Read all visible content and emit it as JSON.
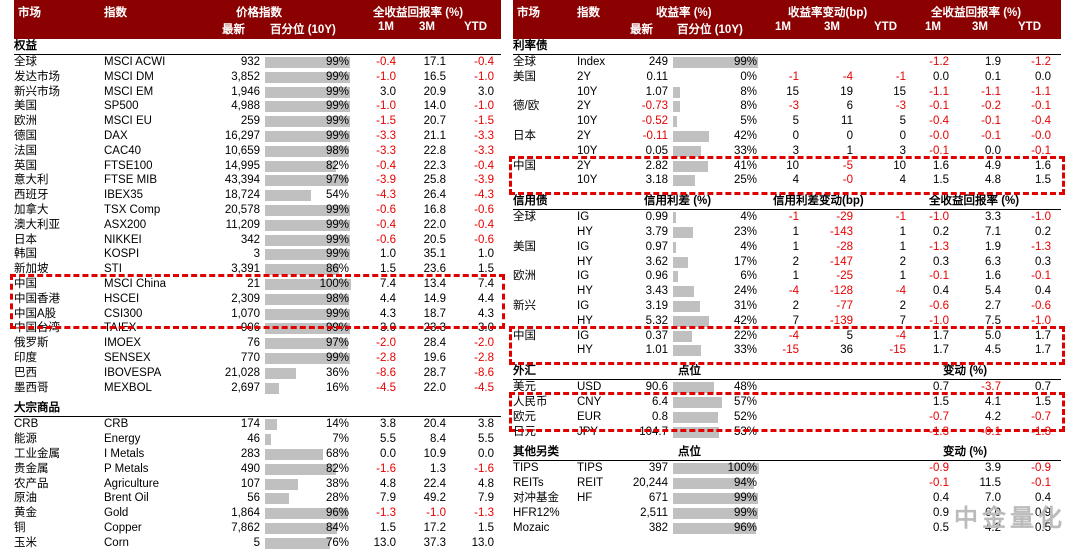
{
  "watermark": "中金量化",
  "left": {
    "header": {
      "market": "市场",
      "index": "指数",
      "price_idx": "价格指数",
      "latest": "最新",
      "percentile": "百分位 (10Y)",
      "total_return": "全收益回报率 (%)",
      "m1": "1M",
      "m3": "3M",
      "ytd": "YTD"
    },
    "equity": {
      "title": "权益",
      "rows": [
        {
          "market": "全球",
          "index": "MSCI ACWI",
          "latest": "932",
          "pct": 99,
          "pct_label": "99%",
          "m1": "-0.4",
          "m3": "17.1",
          "ytd": "-0.4"
        },
        {
          "market": "发达市场",
          "index": "MSCI DM",
          "latest": "3,852",
          "pct": 99,
          "pct_label": "99%",
          "m1": "-1.0",
          "m3": "16.5",
          "ytd": "-1.0"
        },
        {
          "market": "新兴市场",
          "index": "MSCI EM",
          "latest": "1,946",
          "pct": 99,
          "pct_label": "99%",
          "m1": "3.0",
          "m3": "20.9",
          "ytd": "3.0"
        },
        {
          "market": "美国",
          "index": "SP500",
          "latest": "4,988",
          "pct": 99,
          "pct_label": "99%",
          "m1": "-1.0",
          "m3": "14.0",
          "ytd": "-1.0"
        },
        {
          "market": "欧洲",
          "index": "MSCI EU",
          "latest": "259",
          "pct": 99,
          "pct_label": "99%",
          "m1": "-1.5",
          "m3": "20.7",
          "ytd": "-1.5"
        },
        {
          "market": "德国",
          "index": "DAX",
          "latest": "16,297",
          "pct": 99,
          "pct_label": "99%",
          "m1": "-3.3",
          "m3": "21.1",
          "ytd": "-3.3"
        },
        {
          "market": "法国",
          "index": "CAC40",
          "latest": "10,659",
          "pct": 98,
          "pct_label": "98%",
          "m1": "-3.3",
          "m3": "22.8",
          "ytd": "-3.3"
        },
        {
          "market": "英国",
          "index": "FTSE100",
          "latest": "14,995",
          "pct": 82,
          "pct_label": "82%",
          "m1": "-0.4",
          "m3": "22.3",
          "ytd": "-0.4"
        },
        {
          "market": "意大利",
          "index": "FTSE MIB",
          "latest": "43,394",
          "pct": 97,
          "pct_label": "97%",
          "m1": "-3.9",
          "m3": "25.8",
          "ytd": "-3.9"
        },
        {
          "market": "西班牙",
          "index": "IBEX35",
          "latest": "18,724",
          "pct": 54,
          "pct_label": "54%",
          "m1": "-4.3",
          "m3": "26.4",
          "ytd": "-4.3"
        },
        {
          "market": "加拿大",
          "index": "TSX Comp",
          "latest": "20,578",
          "pct": 99,
          "pct_label": "99%",
          "m1": "-0.6",
          "m3": "16.8",
          "ytd": "-0.6"
        },
        {
          "market": "澳大利亚",
          "index": "ASX200",
          "latest": "11,209",
          "pct": 99,
          "pct_label": "99%",
          "m1": "-0.4",
          "m3": "22.0",
          "ytd": "-0.4"
        },
        {
          "market": "日本",
          "index": "NIKKEI",
          "latest": "342",
          "pct": 99,
          "pct_label": "99%",
          "m1": "-0.6",
          "m3": "20.5",
          "ytd": "-0.6"
        },
        {
          "market": "韩国",
          "index": "KOSPI",
          "latest": "3",
          "pct": 99,
          "pct_label": "99%",
          "m1": "1.0",
          "m3": "35.1",
          "ytd": "1.0"
        },
        {
          "market": "新加坡",
          "index": "STI",
          "latest": "3,391",
          "pct": 86,
          "pct_label": "86%",
          "m1": "1.5",
          "m3": "23.6",
          "ytd": "1.5"
        },
        {
          "market": "中国",
          "index": "MSCI China",
          "latest": "21",
          "pct": 100,
          "pct_label": "100%",
          "m1": "7.4",
          "m3": "13.4",
          "ytd": "7.4"
        },
        {
          "market": "中国香港",
          "index": "HSCEI",
          "latest": "2,309",
          "pct": 98,
          "pct_label": "98%",
          "m1": "4.4",
          "m3": "14.9",
          "ytd": "4.4"
        },
        {
          "market": "中国A股",
          "index": "CSI300",
          "latest": "1,070",
          "pct": 99,
          "pct_label": "99%",
          "m1": "4.3",
          "m3": "18.7",
          "ytd": "4.3"
        },
        {
          "market": "中国台湾",
          "index": "TAIEX",
          "latest": "906",
          "pct": 99,
          "pct_label": "99%",
          "m1": "3.0",
          "m3": "23.3",
          "ytd": "3.0"
        },
        {
          "market": "俄罗斯",
          "index": "IMOEX",
          "latest": "76",
          "pct": 97,
          "pct_label": "97%",
          "m1": "-2.0",
          "m3": "28.4",
          "ytd": "-2.0"
        },
        {
          "market": "印度",
          "index": "SENSEX",
          "latest": "770",
          "pct": 99,
          "pct_label": "99%",
          "m1": "-2.8",
          "m3": "19.6",
          "ytd": "-2.8"
        },
        {
          "market": "巴西",
          "index": "IBOVESPA",
          "latest": "21,028",
          "pct": 36,
          "pct_label": "36%",
          "m1": "-8.6",
          "m3": "28.7",
          "ytd": "-8.6"
        },
        {
          "market": "墨西哥",
          "index": "MEXBOL",
          "latest": "2,697",
          "pct": 16,
          "pct_label": "16%",
          "m1": "-4.5",
          "m3": "22.0",
          "ytd": "-4.5"
        }
      ]
    },
    "commodity": {
      "title": "大宗商品",
      "rows": [
        {
          "market": "CRB",
          "index": "CRB",
          "latest": "174",
          "pct": 14,
          "pct_label": "14%",
          "m1": "3.8",
          "m3": "20.4",
          "ytd": "3.8"
        },
        {
          "market": "能源",
          "index": "Energy",
          "latest": "46",
          "pct": 7,
          "pct_label": "7%",
          "m1": "5.5",
          "m3": "8.4",
          "ytd": "5.5"
        },
        {
          "market": "工业金属",
          "index": "I Metals",
          "latest": "283",
          "pct": 68,
          "pct_label": "68%",
          "m1": "0.0",
          "m3": "10.9",
          "ytd": "0.0"
        },
        {
          "market": "贵金属",
          "index": "P Metals",
          "latest": "490",
          "pct": 82,
          "pct_label": "82%",
          "m1": "-1.6",
          "m3": "1.3",
          "ytd": "-1.6"
        },
        {
          "market": "农产品",
          "index": "Agriculture",
          "latest": "107",
          "pct": 38,
          "pct_label": "38%",
          "m1": "4.8",
          "m3": "22.4",
          "ytd": "4.8"
        },
        {
          "market": "原油",
          "index": "Brent Oil",
          "latest": "56",
          "pct": 28,
          "pct_label": "28%",
          "m1": "7.9",
          "m3": "49.2",
          "ytd": "7.9"
        },
        {
          "market": "黄金",
          "index": "Gold",
          "latest": "1,864",
          "pct": 96,
          "pct_label": "96%",
          "m1": "-1.3",
          "m3": "-1.0",
          "ytd": "-1.3"
        },
        {
          "market": "铜",
          "index": "Copper",
          "latest": "7,862",
          "pct": 84,
          "pct_label": "84%",
          "m1": "1.5",
          "m3": "17.2",
          "ytd": "1.5"
        },
        {
          "market": "玉米",
          "index": "Corn",
          "latest": "5",
          "pct": 76,
          "pct_label": "76%",
          "m1": "13.0",
          "m3": "37.3",
          "ytd": "13.0"
        }
      ]
    }
  },
  "right": {
    "header": {
      "market": "市场",
      "index": "指数",
      "yield": "收益率 (%)",
      "latest": "最新",
      "percentile": "百分位 (10Y)",
      "yield_chg": "收益率变动(bp)",
      "total_return": "全收益回报率 (%)",
      "m1": "1M",
      "m3": "3M",
      "ytd": "YTD"
    },
    "rates": {
      "title": "利率债",
      "rows": [
        {
          "market": "全球",
          "index": "Index",
          "latest": "249",
          "pct": 99,
          "pct_label": "99%",
          "c1": "",
          "c3": "",
          "cy": "",
          "m1": "-1.2",
          "m3": "1.9",
          "ytd": "-1.2"
        },
        {
          "market": "美国",
          "index": "2Y",
          "latest": "0.11",
          "pct": 0,
          "pct_label": "0%",
          "c1": "-1",
          "c3": "-4",
          "cy": "-1",
          "m1": "0.0",
          "m3": "0.1",
          "ytd": "0.0"
        },
        {
          "market": "",
          "index": "10Y",
          "latest": "1.07",
          "pct": 8,
          "pct_label": "8%",
          "c1": "15",
          "c3": "19",
          "cy": "15",
          "m1": "-1.1",
          "m3": "-1.1",
          "ytd": "-1.1"
        },
        {
          "market": "德/欧",
          "index": "2Y",
          "latest": "-0.73",
          "pct": 8,
          "pct_label": "8%",
          "c1": "-3",
          "c3": "6",
          "cy": "-3",
          "m1": "-0.1",
          "m3": "-0.2",
          "ytd": "-0.1"
        },
        {
          "market": "",
          "index": "10Y",
          "latest": "-0.52",
          "pct": 5,
          "pct_label": "5%",
          "c1": "5",
          "c3": "11",
          "cy": "5",
          "m1": "-0.4",
          "m3": "-0.1",
          "ytd": "-0.4"
        },
        {
          "market": "日本",
          "index": "2Y",
          "latest": "-0.11",
          "pct": 42,
          "pct_label": "42%",
          "c1": "0",
          "c3": "0",
          "cy": "0",
          "m1": "-0.0",
          "m3": "-0.1",
          "ytd": "-0.0"
        },
        {
          "market": "",
          "index": "10Y",
          "latest": "0.05",
          "pct": 33,
          "pct_label": "33%",
          "c1": "3",
          "c3": "1",
          "cy": "3",
          "m1": "-0.1",
          "m3": "0.0",
          "ytd": "-0.1"
        },
        {
          "market": "中国",
          "index": "2Y",
          "latest": "2.82",
          "pct": 41,
          "pct_label": "41%",
          "c1": "10",
          "c3": "-5",
          "cy": "10",
          "m1": "1.6",
          "m3": "4.9",
          "ytd": "1.6"
        },
        {
          "market": "",
          "index": "10Y",
          "latest": "3.18",
          "pct": 25,
          "pct_label": "25%",
          "c1": "4",
          "c3": "-0",
          "cy": "4",
          "m1": "1.5",
          "m3": "4.8",
          "ytd": "1.5"
        }
      ]
    },
    "credit": {
      "title": "信用债",
      "col_spread": "信用利差 (%)",
      "col_chg": "信用利差变动(bp)",
      "col_ret": "全收益回报率 (%)",
      "rows": [
        {
          "market": "全球",
          "index": "IG",
          "latest": "0.99",
          "pct": 4,
          "pct_label": "4%",
          "c1": "-1",
          "c3": "-29",
          "cy": "-1",
          "m1": "-1.0",
          "m3": "3.3",
          "ytd": "-1.0"
        },
        {
          "market": "",
          "index": "HY",
          "latest": "3.79",
          "pct": 23,
          "pct_label": "23%",
          "c1": "1",
          "c3": "-143",
          "cy": "1",
          "m1": "0.2",
          "m3": "7.1",
          "ytd": "0.2"
        },
        {
          "market": "美国",
          "index": "IG",
          "latest": "0.97",
          "pct": 4,
          "pct_label": "4%",
          "c1": "1",
          "c3": "-28",
          "cy": "1",
          "m1": "-1.3",
          "m3": "1.9",
          "ytd": "-1.3"
        },
        {
          "market": "",
          "index": "HY",
          "latest": "3.62",
          "pct": 17,
          "pct_label": "17%",
          "c1": "2",
          "c3": "-147",
          "cy": "2",
          "m1": "0.3",
          "m3": "6.3",
          "ytd": "0.3"
        },
        {
          "market": "欧洲",
          "index": "IG",
          "latest": "0.96",
          "pct": 6,
          "pct_label": "6%",
          "c1": "1",
          "c3": "-25",
          "cy": "1",
          "m1": "-0.1",
          "m3": "1.6",
          "ytd": "-0.1"
        },
        {
          "market": "",
          "index": "HY",
          "latest": "3.43",
          "pct": 24,
          "pct_label": "24%",
          "c1": "-4",
          "c3": "-128",
          "cy": "-4",
          "m1": "0.4",
          "m3": "5.4",
          "ytd": "0.4"
        },
        {
          "market": "新兴",
          "index": "IG",
          "latest": "3.19",
          "pct": 31,
          "pct_label": "31%",
          "c1": "2",
          "c3": "-77",
          "cy": "2",
          "m1": "-0.6",
          "m3": "2.7",
          "ytd": "-0.6"
        },
        {
          "market": "",
          "index": "HY",
          "latest": "5.32",
          "pct": 42,
          "pct_label": "42%",
          "c1": "7",
          "c3": "-139",
          "cy": "7",
          "m1": "-1.0",
          "m3": "7.5",
          "ytd": "-1.0"
        },
        {
          "market": "中国",
          "index": "IG",
          "latest": "0.37",
          "pct": 22,
          "pct_label": "22%",
          "c1": "-4",
          "c3": "5",
          "cy": "-4",
          "m1": "1.7",
          "m3": "5.0",
          "ytd": "1.7"
        },
        {
          "market": "",
          "index": "HY",
          "latest": "1.01",
          "pct": 33,
          "pct_label": "33%",
          "c1": "-15",
          "c3": "36",
          "cy": "-15",
          "m1": "1.7",
          "m3": "4.5",
          "ytd": "1.7"
        }
      ]
    },
    "fx": {
      "title": "外汇",
      "col_point": "点位",
      "col_chg": "变动 (%)",
      "rows": [
        {
          "market": "美元",
          "index": "USD",
          "latest": "90.6",
          "pct": 48,
          "pct_label": "48%",
          "m1": "0.7",
          "m3": "-3.7",
          "ytd": "0.7"
        },
        {
          "market": "人民币",
          "index": "CNY",
          "latest": "6.4",
          "pct": 57,
          "pct_label": "57%",
          "m1": "1.5",
          "m3": "4.1",
          "ytd": "1.5"
        },
        {
          "market": "欧元",
          "index": "EUR",
          "latest": "0.8",
          "pct": 52,
          "pct_label": "52%",
          "m1": "-0.7",
          "m3": "4.2",
          "ytd": "-0.7"
        },
        {
          "market": "日元",
          "index": "JPY",
          "latest": "104.7",
          "pct": 53,
          "pct_label": "53%",
          "m1": "-1.3",
          "m3": "-0.1",
          "ytd": "-1.3"
        }
      ]
    },
    "alt": {
      "title": "其他另类",
      "col_point": "点位",
      "col_chg": "变动 (%)",
      "rows": [
        {
          "market": "TIPS",
          "index": "TIPS",
          "latest": "397",
          "pct": 100,
          "pct_label": "100%",
          "m1": "-0.9",
          "m3": "3.9",
          "ytd": "-0.9"
        },
        {
          "market": "REITs",
          "index": "REIT",
          "latest": "20,244",
          "pct": 94,
          "pct_label": "94%",
          "m1": "-0.1",
          "m3": "11.5",
          "ytd": "-0.1"
        },
        {
          "market": "对冲基金",
          "index": "HF",
          "latest": "671",
          "pct": 99,
          "pct_label": "99%",
          "m1": "0.4",
          "m3": "7.0",
          "ytd": "0.4"
        },
        {
          "market": "HFR12%",
          "index": "",
          "latest": "2,511",
          "pct": 99,
          "pct_label": "99%",
          "m1": "0.9",
          "m3": "6.0",
          "ytd": "0.9"
        },
        {
          "market": "Mozaic",
          "index": "",
          "latest": "382",
          "pct": 96,
          "pct_label": "96%",
          "m1": "0.5",
          "m3": "4.2",
          "ytd": "0.5"
        }
      ]
    }
  }
}
